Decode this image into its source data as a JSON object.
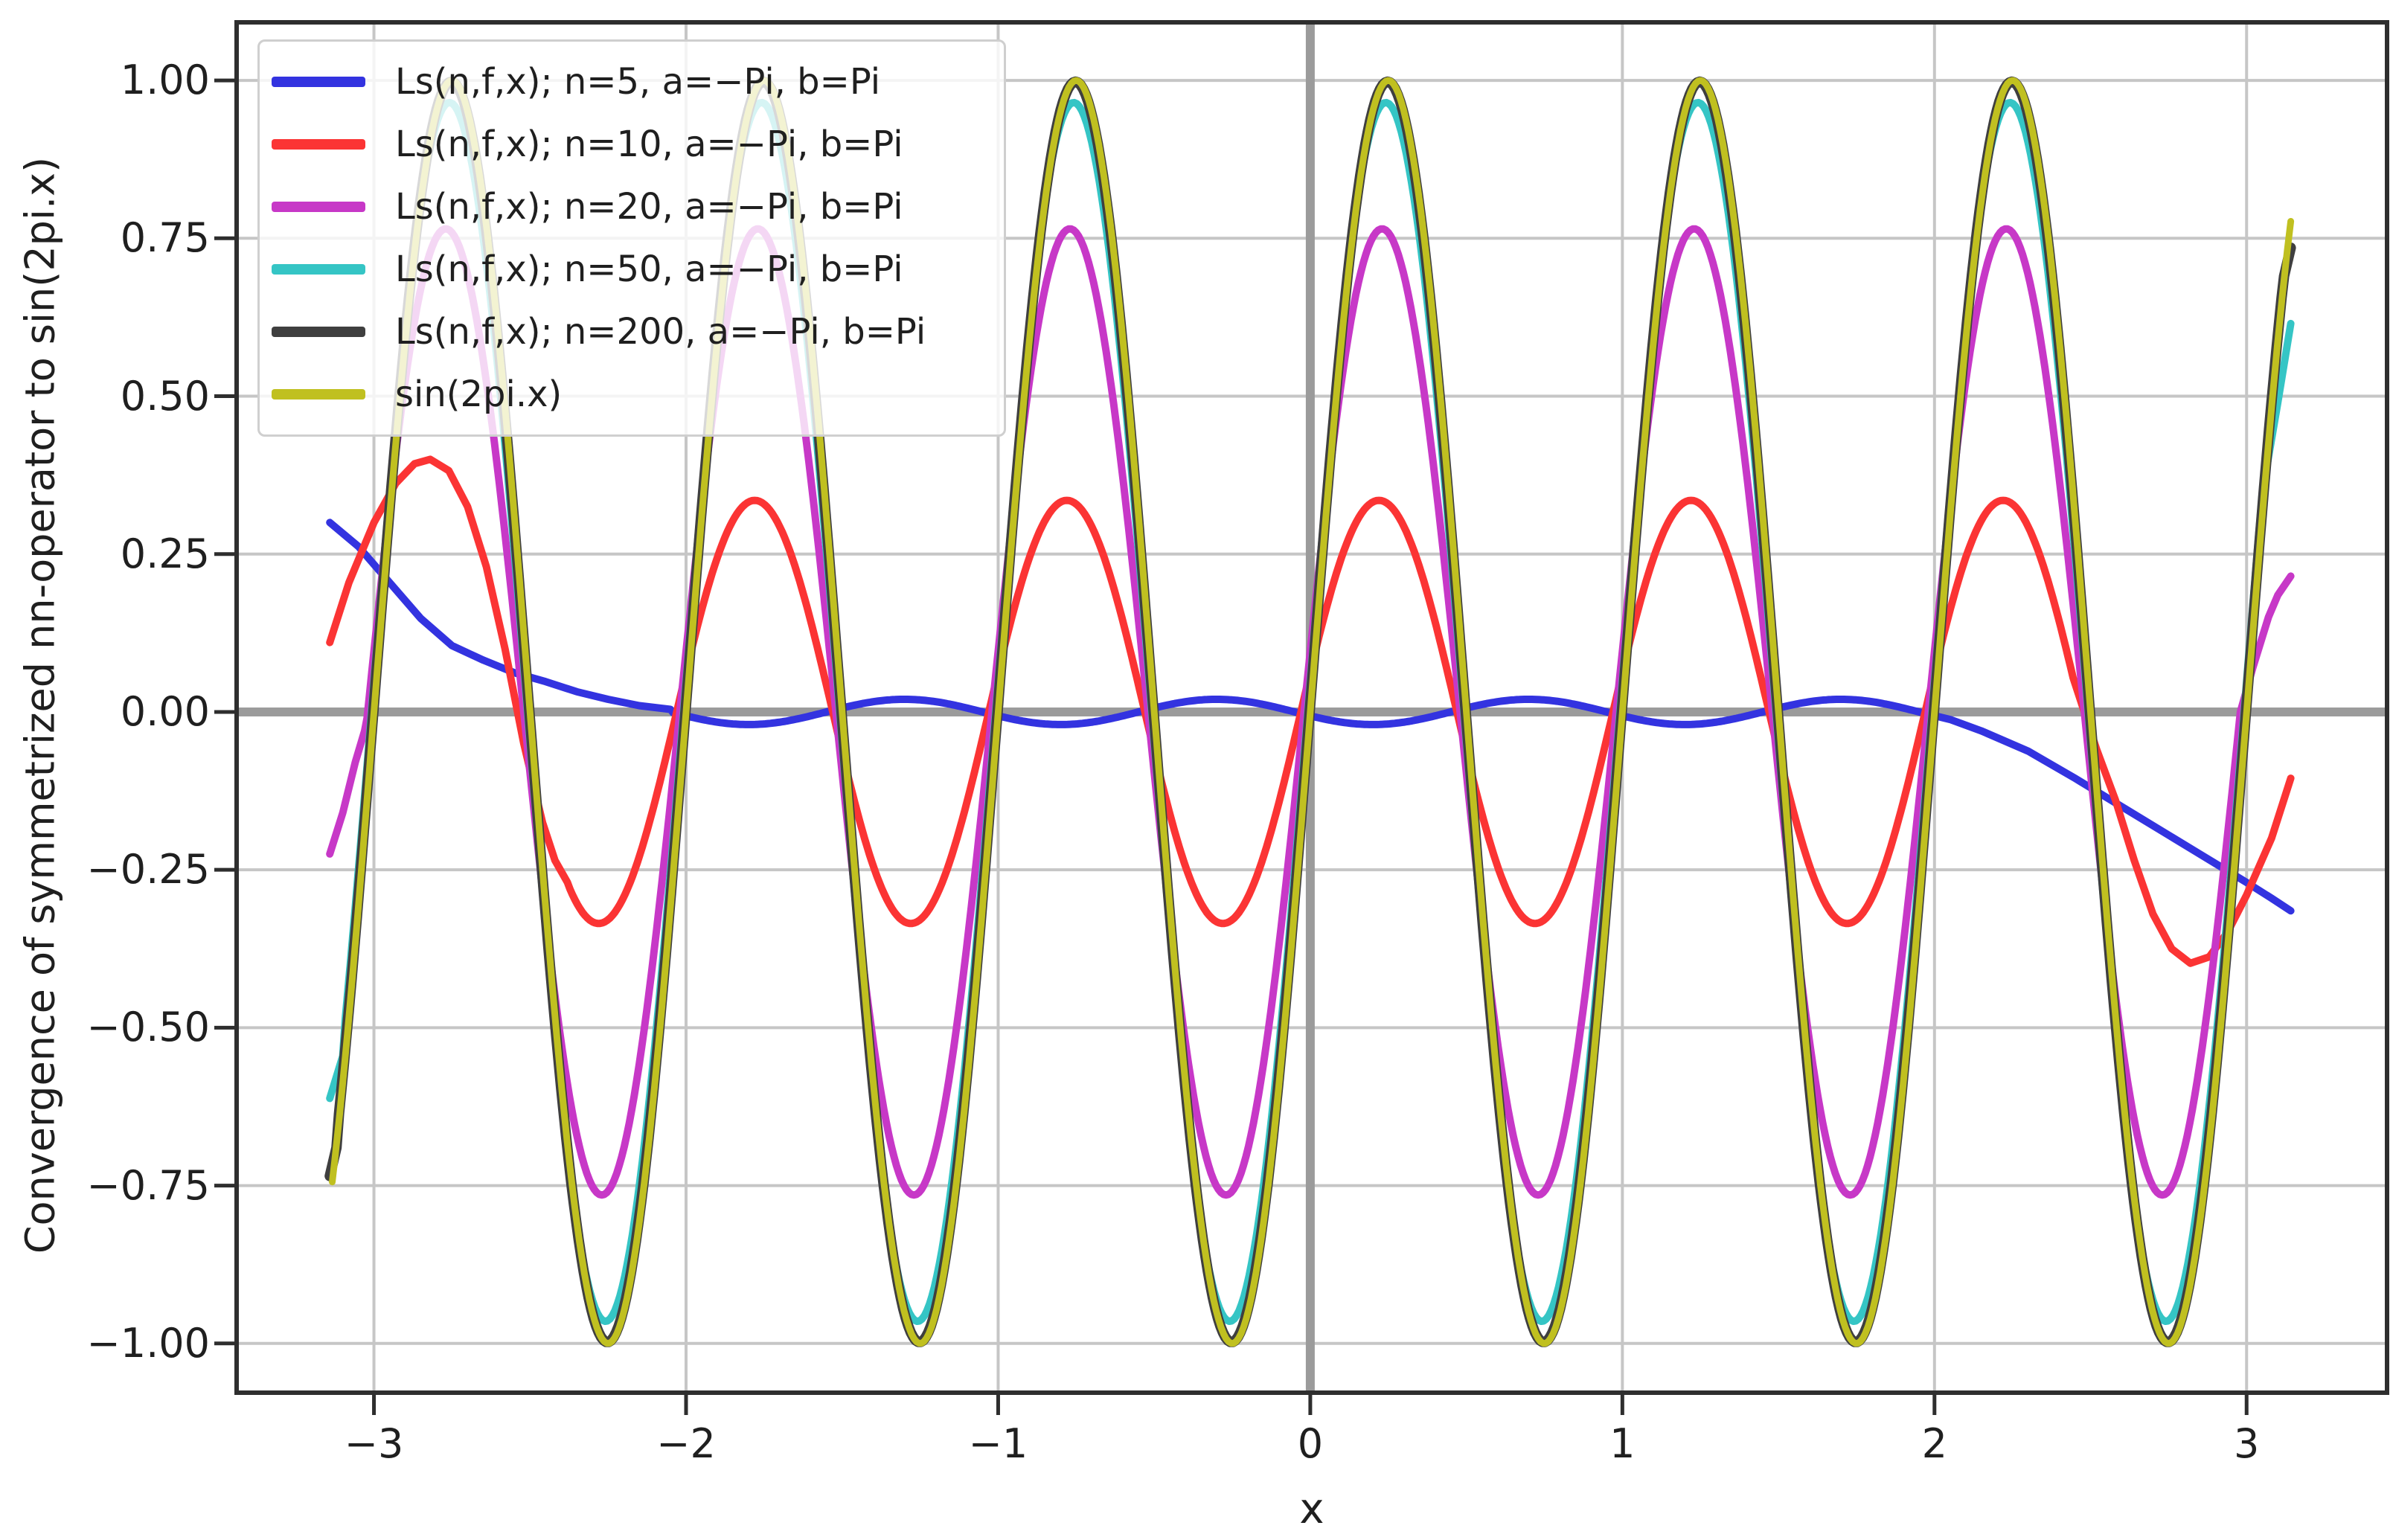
{
  "chart_data": {
    "type": "line",
    "title": "",
    "xlabel": "x",
    "ylabel": "Convergence of symmetrized nn-operator to sin(2pi.x)",
    "xlim": [
      -3.44,
      3.45
    ],
    "ylim": [
      -1.078,
      1.092
    ],
    "x_data_range": [
      -3.1416,
      3.1416
    ],
    "x_ticks": [
      -3,
      -2,
      -1,
      0,
      1,
      2,
      3
    ],
    "x_tick_labels": [
      "−3",
      "−2",
      "−1",
      "0",
      "1",
      "2",
      "3"
    ],
    "y_ticks": [
      1.0,
      0.75,
      0.5,
      0.25,
      0.0,
      -0.25,
      -0.5,
      -0.75,
      -1.0
    ],
    "y_tick_labels": [
      "1.00",
      "0.75",
      "0.50",
      "0.25",
      "0.00",
      "−0.25",
      "−0.50",
      "−0.75",
      "−1.00"
    ],
    "grid": true,
    "grid_color": "#c6c6c6",
    "zero_axis_color": "#9b9b9b",
    "spine_color": "#2e2e2e",
    "text_color": "#1f1f1f",
    "legend_position": "upper left",
    "series": [
      {
        "name": "n5",
        "label": "Ls(n,f,x); n=5, a=−Pi, b=Pi",
        "color": "#3333e0",
        "line_width": 10,
        "model": "amplitude*sin(2*pi*(x+x_shift))",
        "amplitude": 0.02,
        "x_shift": 0.55,
        "boundary_left": [
          [
            -3.1416,
            0.3
          ],
          [
            -3.05,
            0.262
          ],
          [
            -2.95,
            0.205
          ],
          [
            -2.85,
            0.148
          ],
          [
            -2.75,
            0.105
          ],
          [
            -2.65,
            0.082
          ],
          [
            -2.55,
            0.062
          ],
          [
            -2.45,
            0.048
          ],
          [
            -2.35,
            0.032
          ],
          [
            -2.25,
            0.02
          ],
          [
            -2.15,
            0.01
          ],
          [
            -2.05,
            0.004
          ]
        ],
        "boundary_right": [
          [
            1.95,
            0.0
          ],
          [
            2.05,
            -0.012
          ],
          [
            2.15,
            -0.03
          ],
          [
            2.3,
            -0.062
          ],
          [
            2.45,
            -0.105
          ],
          [
            2.6,
            -0.15
          ],
          [
            2.75,
            -0.195
          ],
          [
            2.9,
            -0.24
          ],
          [
            3.0,
            -0.27
          ],
          [
            3.08,
            -0.295
          ],
          [
            3.1416,
            -0.315
          ]
        ]
      },
      {
        "name": "n10",
        "label": "Ls(n,f,x); n=10, a=−Pi, b=Pi",
        "color": "#fb3434",
        "line_width": 10,
        "model": "amplitude*sin(2*pi*(x+x_shift))",
        "amplitude": 0.335,
        "x_shift": 0.03,
        "boundary_left": [
          [
            -3.1416,
            0.11
          ],
          [
            -3.08,
            0.205
          ],
          [
            -3.0,
            0.3
          ],
          [
            -2.93,
            0.362
          ],
          [
            -2.87,
            0.393
          ],
          [
            -2.82,
            0.4
          ],
          [
            -2.76,
            0.382
          ],
          [
            -2.7,
            0.325
          ],
          [
            -2.64,
            0.23
          ],
          [
            -2.58,
            0.1
          ],
          [
            -2.52,
            -0.05
          ],
          [
            -2.46,
            -0.175
          ],
          [
            -2.42,
            -0.235
          ],
          [
            -2.38,
            -0.27
          ]
        ],
        "boundary_right": [
          [
            2.45,
            0.045
          ],
          [
            2.52,
            -0.06
          ],
          [
            2.58,
            -0.14
          ],
          [
            2.64,
            -0.235
          ],
          [
            2.7,
            -0.32
          ],
          [
            2.76,
            -0.375
          ],
          [
            2.82,
            -0.398
          ],
          [
            2.88,
            -0.388
          ],
          [
            2.94,
            -0.348
          ],
          [
            3.0,
            -0.29
          ],
          [
            3.08,
            -0.2
          ],
          [
            3.1416,
            -0.105
          ]
        ]
      },
      {
        "name": "n20",
        "label": "Ls(n,f,x); n=20, a=−Pi, b=Pi",
        "color": "#c738c7",
        "line_width": 10,
        "model": "amplitude*sin(2*pi*(x+x_shift))",
        "amplitude": 0.765,
        "x_shift": 0.02,
        "boundary_left": [
          [
            -3.1416,
            -0.225
          ],
          [
            -3.1,
            -0.16
          ],
          [
            -3.06,
            -0.08
          ],
          [
            -3.03,
            -0.03
          ]
        ],
        "boundary_right": [
          [
            2.98,
            0.0
          ],
          [
            3.02,
            0.07
          ],
          [
            3.07,
            0.15
          ],
          [
            3.1,
            0.185
          ],
          [
            3.1416,
            0.215
          ]
        ]
      },
      {
        "name": "n50",
        "label": "Ls(n,f,x); n=50, a=−Pi, b=Pi",
        "color": "#35c5c5",
        "line_width": 10,
        "model": "amplitude*sin(2*pi*(x+x_shift))",
        "amplitude": 0.965,
        "x_shift": 0.008,
        "boundary_left": [
          [
            -3.1416,
            -0.612
          ],
          [
            -3.1,
            -0.545
          ]
        ],
        "boundary_right": [
          [
            3.05,
            0.345
          ],
          [
            3.1,
            0.49
          ],
          [
            3.1416,
            0.615
          ]
        ]
      },
      {
        "name": "n200",
        "label": "Ls(n,f,x); n=200, a=−Pi, b=Pi",
        "color": "#3f3f3f",
        "line_width": 14,
        "model": "amplitude*sin(2*pi*(x+x_shift))",
        "amplitude": 0.998,
        "x_shift": 0.002,
        "boundary_left": [
          [
            -3.1416,
            -0.735
          ],
          [
            -3.12,
            -0.69
          ]
        ],
        "boundary_right": [
          [
            3.12,
            0.69
          ],
          [
            3.1416,
            0.735
          ]
        ]
      },
      {
        "name": "sin",
        "label": "sin(2pi.x)",
        "color": "#c0c020",
        "line_width": 9,
        "model": "amplitude*sin(2*pi*(x+x_shift))",
        "amplitude": 1.0,
        "x_shift": 0.0,
        "boundary_left": [],
        "boundary_right": []
      }
    ]
  }
}
